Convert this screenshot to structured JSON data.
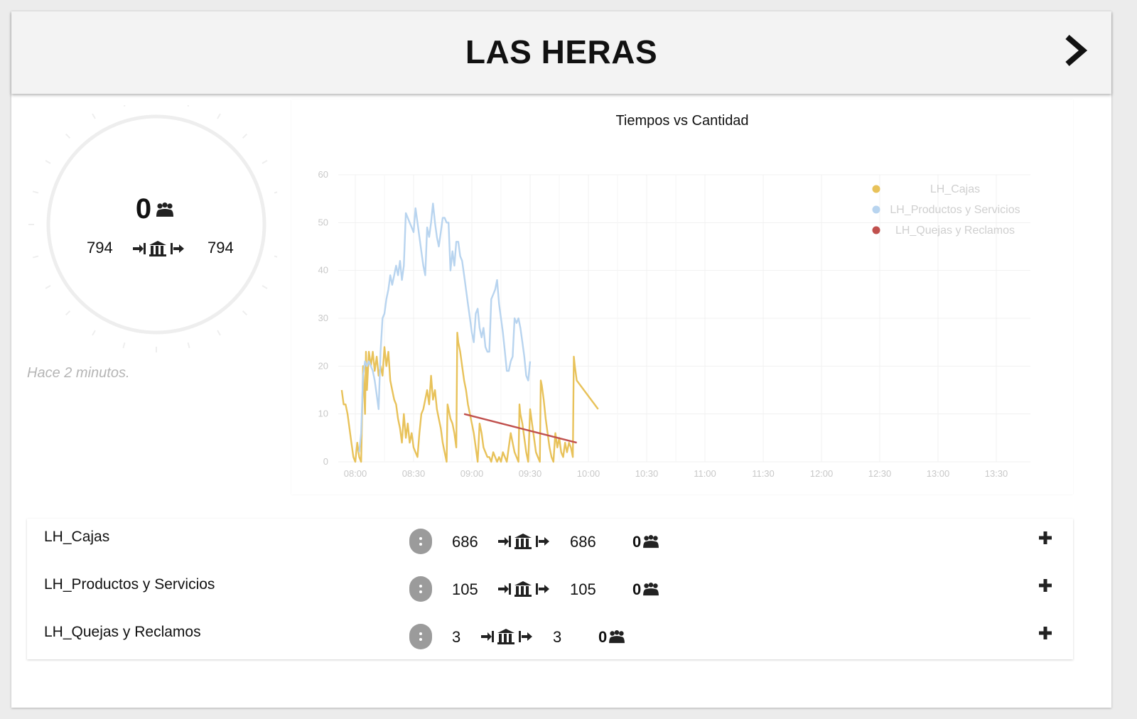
{
  "header": {
    "title": "LAS HERAS"
  },
  "summary": {
    "waiting": "0",
    "entered": "794",
    "exited": "794",
    "updated": "Hace 2 minutos."
  },
  "chart_data": {
    "type": "line",
    "title": "Tiempos vs Cantidad",
    "ylim": [
      0,
      60
    ],
    "yticks": [
      "0",
      "10",
      "20",
      "30",
      "40",
      "50",
      "60"
    ],
    "xticks": [
      "08:00",
      "08:30",
      "09:00",
      "09:30",
      "10:00",
      "10:30",
      "11:00",
      "11:30",
      "12:00",
      "12:30",
      "13:00",
      "13:30"
    ],
    "x_unit": "minutes after 07:00",
    "xlim": [
      53,
      173
    ],
    "grid": true,
    "legend_position": "top-right",
    "series": [
      {
        "name": "LH_Cajas",
        "color": "#e8c25a",
        "points": [
          [
            53,
            15
          ],
          [
            54,
            12
          ],
          [
            55,
            12
          ],
          [
            56,
            10
          ],
          [
            57,
            7
          ],
          [
            58,
            4
          ],
          [
            59,
            1
          ],
          [
            60,
            0
          ],
          [
            61,
            4
          ],
          [
            62,
            1
          ],
          [
            63,
            0
          ],
          [
            64,
            20
          ],
          [
            65,
            10
          ],
          [
            65.5,
            23
          ],
          [
            66,
            15
          ],
          [
            67,
            23
          ],
          [
            68,
            20
          ],
          [
            69,
            23
          ],
          [
            70,
            19
          ],
          [
            71,
            22
          ],
          [
            72,
            18
          ],
          [
            73,
            20
          ],
          [
            74,
            18
          ],
          [
            75,
            24
          ],
          [
            76,
            20
          ],
          [
            77,
            23
          ],
          [
            78,
            17
          ],
          [
            79,
            15
          ],
          [
            80,
            13
          ],
          [
            81,
            12
          ],
          [
            82,
            9
          ],
          [
            83,
            7
          ],
          [
            84,
            4
          ],
          [
            85,
            10
          ],
          [
            86,
            5
          ],
          [
            87,
            8
          ],
          [
            88,
            4
          ],
          [
            89,
            6
          ],
          [
            90,
            3
          ],
          [
            91,
            2
          ],
          [
            92,
            1
          ],
          [
            93,
            6
          ],
          [
            94,
            10
          ],
          [
            95,
            11
          ],
          [
            96,
            13
          ],
          [
            97,
            15
          ],
          [
            98,
            12
          ],
          [
            99,
            18
          ],
          [
            100,
            13
          ],
          [
            101,
            15
          ],
          [
            102,
            11
          ],
          [
            103,
            9
          ],
          [
            104,
            7
          ],
          [
            105,
            4
          ],
          [
            106,
            2
          ],
          [
            107,
            0
          ],
          [
            107.5,
            12
          ],
          [
            108,
            11
          ],
          [
            109,
            9
          ],
          [
            110,
            8
          ],
          [
            111,
            6
          ],
          [
            112,
            3
          ],
          [
            112.5,
            27
          ],
          [
            113,
            25
          ],
          [
            114,
            23
          ],
          [
            115,
            20
          ],
          [
            116,
            17
          ],
          [
            117,
            15
          ],
          [
            118,
            12
          ],
          [
            119,
            10
          ],
          [
            120,
            8
          ],
          [
            121,
            6
          ],
          [
            122,
            3
          ],
          [
            123,
            0
          ],
          [
            124,
            8
          ],
          [
            125,
            6
          ],
          [
            126,
            3
          ],
          [
            127,
            2
          ],
          [
            128,
            1
          ],
          [
            129,
            1
          ],
          [
            130,
            0
          ],
          [
            131,
            2
          ],
          [
            132,
            1
          ],
          [
            133,
            0
          ],
          [
            134,
            1
          ],
          [
            135,
            0
          ],
          [
            136,
            2
          ],
          [
            137,
            1
          ],
          [
            138,
            0
          ],
          [
            139,
            3
          ],
          [
            140,
            6
          ],
          [
            141,
            4
          ],
          [
            142,
            2
          ],
          [
            143,
            1
          ],
          [
            144,
            0
          ],
          [
            144.5,
            12
          ],
          [
            145,
            10
          ],
          [
            146,
            8
          ],
          [
            147,
            5
          ],
          [
            148,
            2
          ],
          [
            149,
            0
          ],
          [
            150,
            11
          ],
          [
            151,
            8
          ],
          [
            152,
            5
          ],
          [
            153,
            2
          ],
          [
            154,
            1
          ],
          [
            155,
            0
          ],
          [
            155.5,
            17
          ],
          [
            156,
            16
          ],
          [
            157,
            13
          ],
          [
            158,
            9
          ],
          [
            159,
            6
          ],
          [
            160,
            3
          ],
          [
            161,
            1
          ],
          [
            162,
            0
          ],
          [
            163,
            6
          ],
          [
            164,
            3
          ],
          [
            165,
            5
          ],
          [
            166,
            2
          ],
          [
            167,
            1
          ],
          [
            168,
            4
          ],
          [
            169,
            2
          ],
          [
            170,
            4
          ],
          [
            171,
            3
          ],
          [
            172,
            1
          ],
          [
            172.5,
            22
          ],
          [
            173,
            20
          ],
          [
            174,
            17
          ],
          [
            185,
            11
          ]
        ]
      },
      {
        "name": "LH_Productos y Servicios",
        "color": "#b8d4ef",
        "points": [
          [
            62,
            2
          ],
          [
            63,
            6
          ],
          [
            64,
            18
          ],
          [
            65,
            21
          ],
          [
            66,
            20
          ],
          [
            67,
            21
          ],
          [
            68,
            20
          ],
          [
            69,
            19
          ],
          [
            70,
            17
          ],
          [
            71,
            14
          ],
          [
            72,
            11
          ],
          [
            73,
            23
          ],
          [
            74,
            30
          ],
          [
            75,
            31
          ],
          [
            76,
            34
          ],
          [
            77,
            36
          ],
          [
            78,
            39
          ],
          [
            79,
            37
          ],
          [
            80,
            39
          ],
          [
            81,
            41
          ],
          [
            82,
            39
          ],
          [
            83,
            42
          ],
          [
            84,
            38
          ],
          [
            85,
            41
          ],
          [
            86,
            52
          ],
          [
            87,
            51
          ],
          [
            88,
            50
          ],
          [
            89,
            49
          ],
          [
            90,
            48
          ],
          [
            91,
            53
          ],
          [
            92,
            50
          ],
          [
            93,
            47
          ],
          [
            94,
            44
          ],
          [
            95,
            41
          ],
          [
            96,
            39
          ],
          [
            97,
            49
          ],
          [
            98,
            47
          ],
          [
            99,
            50
          ],
          [
            100,
            54
          ],
          [
            101,
            50
          ],
          [
            102,
            47
          ],
          [
            103,
            45
          ],
          [
            104,
            48
          ],
          [
            105,
            51
          ],
          [
            106,
            51
          ],
          [
            107,
            50
          ],
          [
            108,
            50
          ],
          [
            109,
            40
          ],
          [
            110,
            44
          ],
          [
            111,
            41
          ],
          [
            112,
            46
          ],
          [
            113,
            46
          ],
          [
            114,
            43
          ],
          [
            115,
            42
          ],
          [
            116,
            39
          ],
          [
            117,
            36
          ],
          [
            118,
            33
          ],
          [
            119,
            30
          ],
          [
            120,
            27
          ],
          [
            121,
            25
          ],
          [
            122,
            31
          ],
          [
            123,
            32
          ],
          [
            124,
            28
          ],
          [
            125,
            26
          ],
          [
            126,
            28
          ],
          [
            127,
            24
          ],
          [
            128,
            23
          ],
          [
            129,
            23
          ],
          [
            130,
            34
          ],
          [
            131,
            35
          ],
          [
            132,
            36
          ],
          [
            133,
            38
          ],
          [
            134,
            33
          ],
          [
            135,
            30
          ],
          [
            136,
            27
          ],
          [
            137,
            23
          ],
          [
            138,
            19
          ],
          [
            139,
            19
          ],
          [
            140,
            21
          ],
          [
            141,
            22
          ],
          [
            142,
            30
          ],
          [
            143,
            29
          ],
          [
            144,
            30
          ],
          [
            145,
            28
          ],
          [
            146,
            25
          ],
          [
            147,
            22
          ],
          [
            148,
            18
          ],
          [
            149,
            17
          ],
          [
            150,
            21
          ]
        ]
      },
      {
        "name": "LH_Quejas y Reclamos",
        "color": "#c0504d",
        "points": [
          [
            116,
            10
          ],
          [
            174,
            4
          ]
        ]
      }
    ]
  },
  "queues": [
    {
      "name": "LH_Cajas",
      "entered": "686",
      "exited": "686",
      "waiting": "0"
    },
    {
      "name": "LH_Productos y Servicios",
      "entered": "105",
      "exited": "105",
      "waiting": "0"
    },
    {
      "name": "LH_Quejas y Reclamos",
      "entered": "3",
      "exited": "3",
      "waiting": "0"
    }
  ]
}
